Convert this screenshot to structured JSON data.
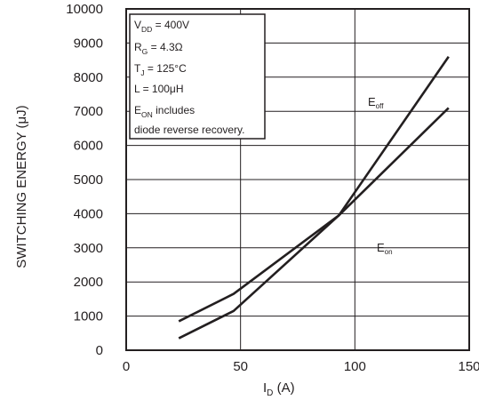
{
  "chart_data": {
    "type": "line",
    "xlabel": {
      "main": "I",
      "sub": "D",
      "tail": " (A)"
    },
    "ylabel": "SWITCHING ENERGY (μJ)",
    "xlim": [
      0,
      150
    ],
    "ylim": [
      0,
      10000
    ],
    "x_ticks": [
      "0",
      "50",
      "100",
      "150"
    ],
    "y_ticks": [
      "0",
      "1000",
      "2000",
      "3000",
      "4000",
      "5000",
      "6000",
      "7000",
      "8000",
      "9000",
      "10000"
    ],
    "grid": true,
    "series": [
      {
        "name": {
          "main": "E",
          "sub": "off"
        },
        "x": [
          23,
          47,
          93,
          141
        ],
        "y": [
          350,
          1150,
          3950,
          8600
        ]
      },
      {
        "name": {
          "main": "E",
          "sub": "on"
        },
        "x": [
          23,
          47,
          93,
          141
        ],
        "y": [
          850,
          1650,
          3950,
          7100
        ]
      }
    ],
    "annotation": [
      {
        "main": "V",
        "sub": "DD",
        "tail": " = 400V"
      },
      {
        "main": "R",
        "sub": "G",
        "tail": " = 4.3Ω"
      },
      {
        "main": "T",
        "sub": "J",
        "tail": " = 125°C"
      },
      {
        "main": "L = 100μH",
        "sub": "",
        "tail": ""
      },
      {
        "main": "E",
        "sub": "ON",
        "tail": " includes"
      },
      {
        "main": "diode reverse recovery.",
        "sub": "",
        "tail": ""
      }
    ],
    "colors": {
      "line": "#231f20",
      "grid": "#231f20",
      "frame": "#231f20"
    }
  }
}
